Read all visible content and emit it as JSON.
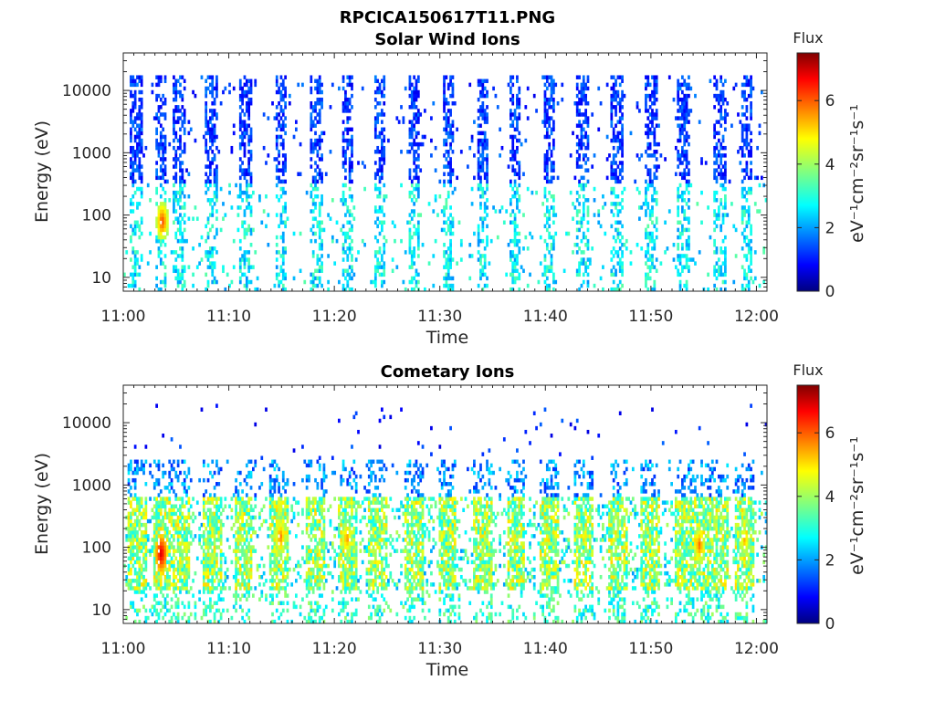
{
  "figure_title": "RPCICA150617T11.PNG",
  "chart_data": [
    {
      "type": "heatmap",
      "title": "Solar Wind Ions",
      "xlabel": "Time",
      "ylabel": "Energy (eV)",
      "x_ticks": [
        "11:00",
        "11:10",
        "11:20",
        "11:30",
        "11:40",
        "11:50",
        "12:00"
      ],
      "x_range": [
        "11:00",
        "12:01"
      ],
      "y_scale": "log",
      "y_ticks": [
        "10",
        "100",
        "1000",
        "10000"
      ],
      "y_range": [
        6,
        40000
      ],
      "colorbar": {
        "title": "Flux",
        "label": "eV⁻¹cm⁻²sr⁻¹s⁻¹",
        "ticks": [
          "0",
          "2",
          "4",
          "6"
        ],
        "range": [
          0,
          7.5
        ]
      },
      "burst_times_min": [
        1.2,
        3.6,
        5.3,
        8.3,
        11.6,
        14.9,
        18.3,
        21.2,
        24.3,
        27.5,
        30.8,
        34.1,
        37.1,
        40.4,
        43.5,
        46.8,
        50.0,
        53.1,
        56.5,
        59.1
      ],
      "hotspots": [
        {
          "time_min": 3.7,
          "energy_ev": 80,
          "flux": 6.2
        }
      ]
    },
    {
      "type": "heatmap",
      "title": "Cometary Ions",
      "xlabel": "Time",
      "ylabel": "Energy (eV)",
      "x_ticks": [
        "11:00",
        "11:10",
        "11:20",
        "11:30",
        "11:40",
        "11:50",
        "12:00"
      ],
      "x_range": [
        "11:00",
        "12:01"
      ],
      "y_scale": "log",
      "y_ticks": [
        "10",
        "100",
        "1000",
        "10000"
      ],
      "y_range": [
        6,
        40000
      ],
      "colorbar": {
        "title": "Flux",
        "label": "eV⁻¹cm⁻²sr⁻¹s⁻¹",
        "ticks": [
          "0",
          "2",
          "4",
          "6"
        ],
        "range": [
          0,
          7.5
        ]
      },
      "burst_times_min": [
        1.4,
        3.7,
        5.5,
        8.5,
        11.4,
        14.8,
        18.2,
        21.3,
        24.1,
        27.6,
        30.7,
        34.0,
        37.2,
        40.3,
        43.6,
        46.9,
        49.9,
        53.2,
        54.6,
        56.4,
        58.9
      ],
      "hotspots": [
        {
          "time_min": 3.6,
          "energy_ev": 80,
          "flux": 7.0
        },
        {
          "time_min": 14.9,
          "energy_ev": 150,
          "flux": 5.8
        },
        {
          "time_min": 21.2,
          "energy_ev": 140,
          "flux": 5.6
        },
        {
          "time_min": 54.6,
          "energy_ev": 110,
          "flux": 5.9
        },
        {
          "time_min": 58.9,
          "energy_ev": 130,
          "flux": 5.4
        }
      ]
    }
  ]
}
